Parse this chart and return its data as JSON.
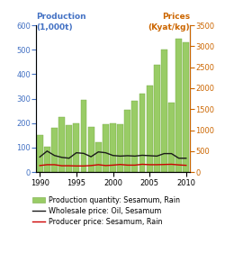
{
  "years": [
    1990,
    1991,
    1992,
    1993,
    1994,
    1995,
    1996,
    1997,
    1998,
    1999,
    2000,
    2001,
    2002,
    2003,
    2004,
    2005,
    2006,
    2007,
    2008,
    2009,
    2010
  ],
  "production": [
    150,
    105,
    180,
    225,
    190,
    200,
    295,
    185,
    120,
    195,
    200,
    195,
    255,
    290,
    320,
    355,
    440,
    500,
    285,
    545,
    530
  ],
  "wholesale_price": [
    360,
    500,
    395,
    350,
    330,
    460,
    445,
    365,
    480,
    460,
    395,
    380,
    390,
    380,
    400,
    390,
    380,
    440,
    440,
    330,
    330
  ],
  "producer_price": [
    155,
    175,
    175,
    150,
    150,
    145,
    145,
    155,
    175,
    155,
    165,
    180,
    165,
    165,
    185,
    175,
    175,
    180,
    185,
    170,
    160
  ],
  "bar_color": "#99cc66",
  "bar_edge_color": "#77aa44",
  "wholesale_color": "#1a1a1a",
  "producer_color": "#cc0000",
  "left_ylim": [
    0,
    600
  ],
  "right_ylim": [
    0,
    3500
  ],
  "left_yticks": [
    0,
    100,
    200,
    300,
    400,
    500,
    600
  ],
  "right_yticks": [
    0,
    500,
    1000,
    1500,
    2000,
    2500,
    3000,
    3500
  ],
  "xlim": [
    1989.5,
    2010.5
  ],
  "xticks": [
    1990,
    1995,
    2000,
    2005,
    2010
  ],
  "ylabel_left_1": "Production",
  "ylabel_left_2": "(1,000t)",
  "ylabel_right_1": "Prices",
  "ylabel_right_2": "(Kyat/kg)",
  "legend_labels": [
    "Production quantity: Sesamum, Rain",
    "Wholesale price: Oil, Sesamum",
    "Producer price: Sesamum, Rain"
  ],
  "axis_fontsize": 6.5,
  "tick_fontsize": 6,
  "legend_fontsize": 5.8
}
